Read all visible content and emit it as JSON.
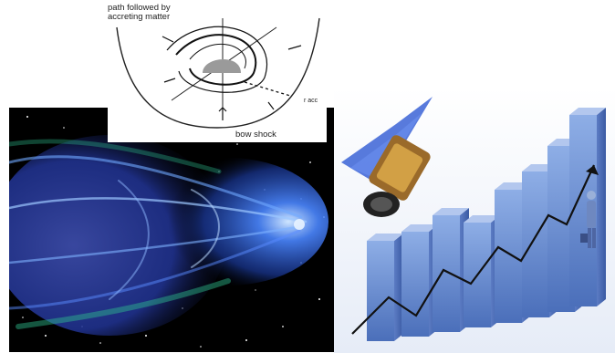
{
  "diagram": {
    "label_path_line1": "path followed by",
    "label_path_line2": "accreting matter",
    "label_bow_shock": "bow shock",
    "label_r_acc": "r acc"
  },
  "colors": {
    "nebula_blue": "#3a6fd8",
    "nebula_green": "#2fbf8f",
    "bar_blue": "#7f9fd8",
    "diagram_gray": "#9a9a9a"
  },
  "icons": {
    "satellite": "satellite-icon",
    "person": "person-icon"
  }
}
